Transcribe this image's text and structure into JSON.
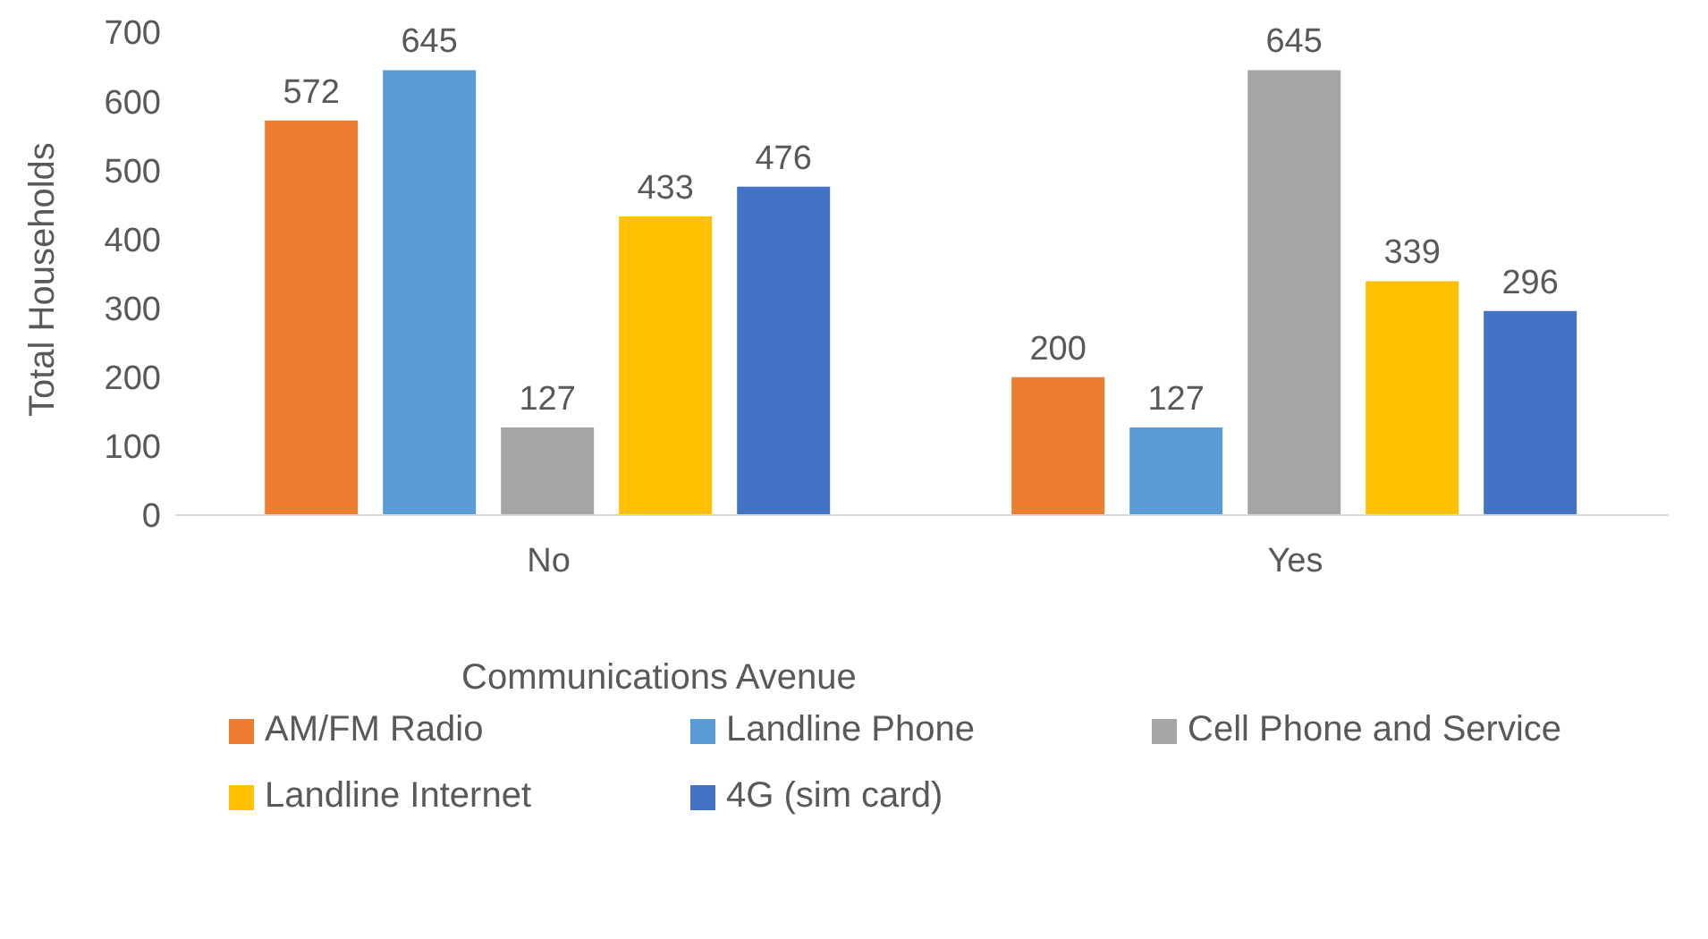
{
  "chart_data": {
    "type": "bar",
    "ylabel": "Total Households",
    "legend_title": "Communications Avenue",
    "categories": [
      "No",
      "Yes"
    ],
    "series": [
      {
        "name": "AM/FM Radio",
        "color": "#ed7d31",
        "values": [
          572,
          200
        ]
      },
      {
        "name": "Landline Phone",
        "color": "#5b9bd5",
        "values": [
          645,
          127
        ]
      },
      {
        "name": "Cell Phone and Service",
        "color": "#a5a5a5",
        "values": [
          127,
          645
        ]
      },
      {
        "name": "Landline Internet",
        "color": "#ffc000",
        "values": [
          433,
          339
        ]
      },
      {
        "name": "4G (sim card)",
        "color": "#4472c4",
        "values": [
          476,
          296
        ]
      }
    ],
    "ylim": [
      0,
      700
    ],
    "yticks": [
      0,
      100,
      200,
      300,
      400,
      500,
      600,
      700
    ],
    "data_labels": true,
    "legend": "bottom"
  }
}
